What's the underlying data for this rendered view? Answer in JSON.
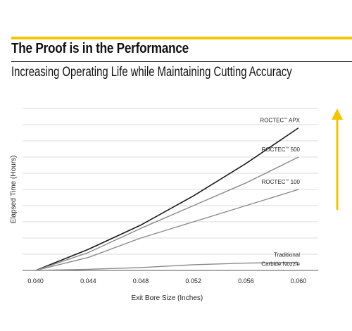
{
  "header": {
    "title": "The Proof is in the Performance",
    "subtitle": "Increasing Operating Life while Maintaining Cutting Accuracy"
  },
  "colors": {
    "accent": "#f5c400",
    "arrow": "#f5c400",
    "grid": "#cfcfcf",
    "series_dark": "#1a1a1a",
    "series_gray": "#8a8a8a"
  },
  "chart_data": {
    "type": "line",
    "xlabel": "Exit Bore Size (Inches)",
    "ylabel": "Elapsed Time (Hours)",
    "xlim": [
      0.039,
      0.0615
    ],
    "ylim": [
      0,
      10
    ],
    "grid": true,
    "x_ticks": [
      "0.040",
      "0.044",
      "0.048",
      "0.052",
      "0.056",
      "0.060"
    ],
    "x": [
      0.04,
      0.044,
      0.048,
      0.052,
      0.056,
      0.06
    ],
    "series": [
      {
        "name": "ROCTEC™ APX",
        "label_main": "ROCTEC",
        "label_tm": "™",
        "label_rest": " APX",
        "color": "#1a1a1a",
        "values": [
          0,
          1.3,
          2.8,
          4.6,
          6.6,
          8.8
        ]
      },
      {
        "name": "ROCTEC™ 500",
        "label_main": "ROCTEC",
        "label_tm": "™",
        "label_rest": " 500",
        "color": "#8a8a8a",
        "values": [
          0,
          1.1,
          2.6,
          4.0,
          5.4,
          7.0
        ]
      },
      {
        "name": "ROCTEC™ 100",
        "label_main": "ROCTEC",
        "label_tm": "™",
        "label_rest": " 100",
        "color": "#8a8a8a",
        "values": [
          0,
          0.8,
          2.0,
          3.0,
          4.0,
          5.0
        ]
      },
      {
        "name": "Traditional Carbide Nozzle",
        "label_main": "Traditional",
        "label_tm": "",
        "label_rest": "",
        "label_line2": "Carbide Nozzle",
        "color": "#8a8a8a",
        "values": [
          0,
          0.07,
          0.18,
          0.35,
          0.45,
          0.5
        ]
      }
    ],
    "trend_arrow": "up"
  }
}
